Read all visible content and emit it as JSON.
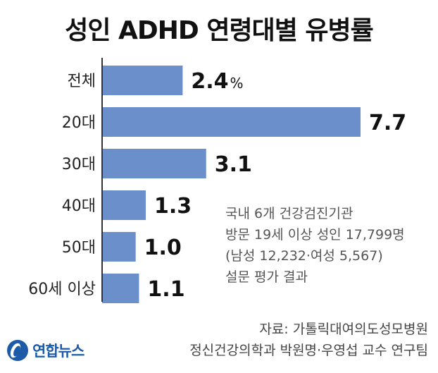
{
  "chart_data": {
    "type": "bar",
    "orientation": "horizontal",
    "title": "성인 ADHD 연령대별 유병률",
    "categories": [
      "전체",
      "20대",
      "30대",
      "40대",
      "50대",
      "60세 이상"
    ],
    "values": [
      2.4,
      7.7,
      3.1,
      1.3,
      1.0,
      1.1
    ],
    "value_labels": [
      "2.4",
      "7.7",
      "3.1",
      "1.3",
      "1.0",
      "1.1"
    ],
    "unit": "%",
    "unit_shown_on": "전체",
    "xlim": [
      0,
      7.7
    ],
    "grid": false,
    "bar_color": "#6a8fca"
  },
  "notes": [
    "국내 6개 건강검진기관",
    "방문 19세 이상 성인 17,799명",
    "(남성 12,232·여성 5,567)",
    "설문 평가 결과"
  ],
  "source": [
    "자료: 가톨릭대여의도성모병원",
    "정신건강의학과 박원명·우영섭 교수 연구팀"
  ],
  "logo": {
    "text": "연합뉴스",
    "icon": "yonhap-logo-icon",
    "color": "#1d5aa8"
  }
}
